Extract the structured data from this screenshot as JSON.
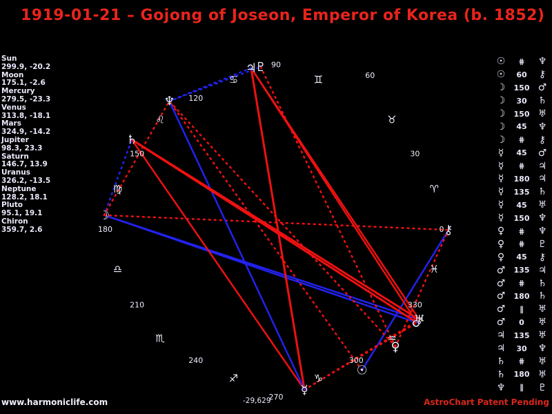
{
  "title": "1919-01-21 – Gojong of Joseon, Emperor of Korea (b. 1852)",
  "footer": {
    "site": "www.harmoniclife.com",
    "brand": "AstroChart Patent Pending"
  },
  "colors": {
    "background": "#000000",
    "title_red": "#e8241c",
    "text_white": "#e9e9fb",
    "hard_aspect_red": "#ee1111",
    "soft_aspect_blue": "#2222ee",
    "glyph_white": "#eef0ff"
  },
  "planets": [
    {
      "key": "sun",
      "name": "Sun",
      "glyph": "☉",
      "lon": 299.9,
      "lon_str": "299.9",
      "dec_str": "-20.2"
    },
    {
      "key": "moon",
      "name": "Moon",
      "glyph": "☽",
      "lon": 175.1,
      "lon_str": "175.1",
      "dec_str": "-2.6"
    },
    {
      "key": "mercury",
      "name": "Mercury",
      "glyph": "☿",
      "lon": 279.5,
      "lon_str": "279.5",
      "dec_str": "-23.3"
    },
    {
      "key": "venus",
      "name": "Venus",
      "glyph": "♀",
      "lon": 313.8,
      "lon_str": "313.8",
      "dec_str": "-18.1"
    },
    {
      "key": "mars",
      "name": "Mars",
      "glyph": "♂",
      "lon": 324.9,
      "lon_str": "324.9",
      "dec_str": "-14.2"
    },
    {
      "key": "jupiter",
      "name": "Jupiter",
      "glyph": "♃",
      "lon": 98.3,
      "lon_str": "98.3",
      "dec_str": "23.3"
    },
    {
      "key": "saturn",
      "name": "Saturn",
      "glyph": "♄",
      "lon": 146.7,
      "lon_str": "146.7",
      "dec_str": "13.9"
    },
    {
      "key": "uranus",
      "name": "Uranus",
      "glyph": "♅",
      "lon": 326.2,
      "lon_str": "326.2",
      "dec_str": "-13.5"
    },
    {
      "key": "neptune",
      "name": "Neptune",
      "glyph": "♆",
      "lon": 128.2,
      "lon_str": "128.2",
      "dec_str": "18.1"
    },
    {
      "key": "pluto",
      "name": "Pluto",
      "glyph": "♇",
      "lon": 95.1,
      "lon_str": "95.1",
      "dec_str": "19.1"
    },
    {
      "key": "chiron",
      "name": "Chiron",
      "glyph": "⚷",
      "lon": 359.7,
      "lon_str": "359.7",
      "dec_str": "2.6"
    }
  ],
  "signs": [
    {
      "name": "aries",
      "glyph": "♈",
      "mid": 15
    },
    {
      "name": "taurus",
      "glyph": "♉",
      "mid": 45
    },
    {
      "name": "gemini",
      "glyph": "♊",
      "mid": 75
    },
    {
      "name": "cancer",
      "glyph": "♋",
      "mid": 105
    },
    {
      "name": "leo",
      "glyph": "♌",
      "mid": 135
    },
    {
      "name": "virgo",
      "glyph": "♍",
      "mid": 165
    },
    {
      "name": "libra",
      "glyph": "♎",
      "mid": 195
    },
    {
      "name": "scorpio",
      "glyph": "♏",
      "mid": 225
    },
    {
      "name": "sagittarius",
      "glyph": "♐",
      "mid": 255
    },
    {
      "name": "capricorn",
      "glyph": "♑",
      "mid": 285
    },
    {
      "name": "aquarius",
      "glyph": "♒",
      "mid": 315
    },
    {
      "name": "pisces",
      "glyph": "♓",
      "mid": 345
    }
  ],
  "ticks": [
    "0",
    "30",
    "60",
    "90",
    "120",
    "150",
    "180",
    "210",
    "240",
    "270",
    "300",
    "330"
  ],
  "bottom_extra_value": "-29,629",
  "aspects": [
    {
      "p1": "sun",
      "type": "contra",
      "p2": "neptune"
    },
    {
      "p1": "sun",
      "type": "60",
      "p2": "chiron"
    },
    {
      "p1": "moon",
      "type": "150",
      "p2": "mars"
    },
    {
      "p1": "moon",
      "type": "30",
      "p2": "saturn"
    },
    {
      "p1": "moon",
      "type": "150",
      "p2": "uranus"
    },
    {
      "p1": "moon",
      "type": "45",
      "p2": "neptune"
    },
    {
      "p1": "moon",
      "type": "contra",
      "p2": "chiron"
    },
    {
      "p1": "mercury",
      "type": "45",
      "p2": "mars"
    },
    {
      "p1": "mercury",
      "type": "contra",
      "p2": "jupiter"
    },
    {
      "p1": "mercury",
      "type": "180",
      "p2": "jupiter"
    },
    {
      "p1": "mercury",
      "type": "135",
      "p2": "saturn"
    },
    {
      "p1": "mercury",
      "type": "45",
      "p2": "uranus"
    },
    {
      "p1": "mercury",
      "type": "150",
      "p2": "neptune"
    },
    {
      "p1": "venus",
      "type": "contra",
      "p2": "neptune"
    },
    {
      "p1": "venus",
      "type": "contra",
      "p2": "pluto"
    },
    {
      "p1": "venus",
      "type": "45",
      "p2": "chiron"
    },
    {
      "p1": "mars",
      "type": "135",
      "p2": "jupiter"
    },
    {
      "p1": "mars",
      "type": "contra",
      "p2": "saturn"
    },
    {
      "p1": "mars",
      "type": "180",
      "p2": "saturn"
    },
    {
      "p1": "mars",
      "type": "par",
      "p2": "uranus"
    },
    {
      "p1": "mars",
      "type": "0",
      "p2": "uranus"
    },
    {
      "p1": "jupiter",
      "type": "135",
      "p2": "uranus"
    },
    {
      "p1": "jupiter",
      "type": "30",
      "p2": "neptune"
    },
    {
      "p1": "saturn",
      "type": "contra",
      "p2": "uranus"
    },
    {
      "p1": "saturn",
      "type": "180",
      "p2": "uranus"
    },
    {
      "p1": "neptune",
      "type": "par",
      "p2": "pluto"
    }
  ],
  "aspect_symbols": {
    "par": "∥",
    "contra": "⋕"
  }
}
